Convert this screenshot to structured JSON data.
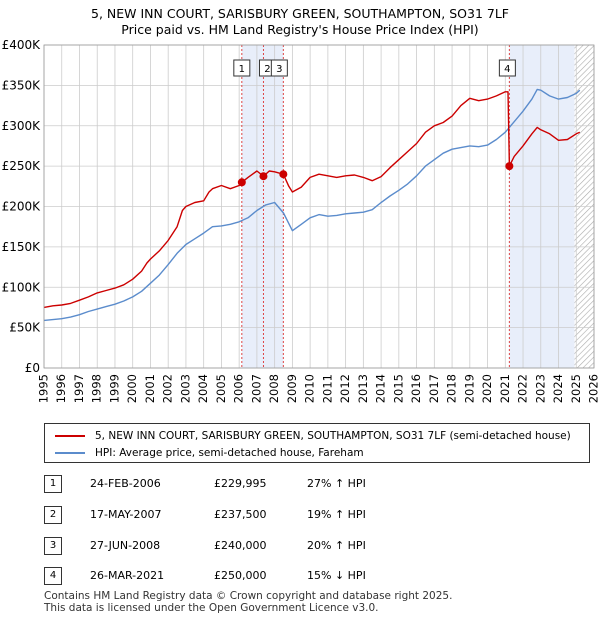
{
  "title_line1": "5, NEW INN COURT, SARISBURY GREEN, SOUTHAMPTON, SO31 7LF",
  "title_line2": "Price paid vs. HM Land Registry's House Price Index (HPI)",
  "legend": {
    "property": "5, NEW INN COURT, SARISBURY GREEN, SOUTHAMPTON, SO31 7LF (semi-detached house)",
    "hpi": "HPI: Average price, semi-detached house, Fareham"
  },
  "transactions": [
    {
      "num": "1",
      "date": "24-FEB-2006",
      "price": "£229,995",
      "hpi": "27% ↑ HPI"
    },
    {
      "num": "2",
      "date": "17-MAY-2007",
      "price": "£237,500",
      "hpi": "19% ↑ HPI"
    },
    {
      "num": "3",
      "date": "27-JUN-2008",
      "price": "£240,000",
      "hpi": "20% ↑ HPI"
    },
    {
      "num": "4",
      "date": "26-MAR-2021",
      "price": "£250,000",
      "hpi": "15% ↓ HPI"
    }
  ],
  "footer_line1": "Contains HM Land Registry data © Crown copyright and database right 2025.",
  "footer_line2": "This data is licensed under the Open Government Licence v3.0.",
  "colors": {
    "property": "#cc0000",
    "hpi": "#5b8ccc",
    "shade": "#e8eefa",
    "grid": "#cccccc"
  },
  "chart_data": {
    "type": "line",
    "xlim": [
      1995,
      2026
    ],
    "ylim": [
      0,
      400000
    ],
    "xticks": [
      1995,
      1996,
      1997,
      1998,
      1999,
      2000,
      2001,
      2002,
      2003,
      2004,
      2005,
      2006,
      2007,
      2008,
      2009,
      2010,
      2011,
      2012,
      2013,
      2014,
      2015,
      2016,
      2017,
      2018,
      2019,
      2020,
      2021,
      2022,
      2023,
      2024,
      2025,
      2026
    ],
    "yticks": [
      {
        "value": 0,
        "label": "£0"
      },
      {
        "value": 50000,
        "label": "£50K"
      },
      {
        "value": 100000,
        "label": "£100K"
      },
      {
        "value": 150000,
        "label": "£150K"
      },
      {
        "value": 200000,
        "label": "£200K"
      },
      {
        "value": 250000,
        "label": "£250K"
      },
      {
        "value": 300000,
        "label": "£300K"
      },
      {
        "value": 350000,
        "label": "£350K"
      },
      {
        "value": 400000,
        "label": "£400K"
      }
    ],
    "shaded_ranges": [
      [
        2006.15,
        2008.49
      ],
      [
        2021.23,
        2024.9
      ]
    ],
    "hatched_range": [
      2024.9,
      2026
    ],
    "series": [
      {
        "name": "5, NEW INN COURT, SARISBURY GREEN, SOUTHAMPTON, SO31 7LF (semi-detached house)",
        "points": [
          [
            1995,
            75000
          ],
          [
            1995.5,
            77000
          ],
          [
            1996,
            78000
          ],
          [
            1996.5,
            80000
          ],
          [
            1997,
            84000
          ],
          [
            1997.5,
            88000
          ],
          [
            1998,
            93000
          ],
          [
            1998.5,
            96000
          ],
          [
            1999,
            99000
          ],
          [
            1999.5,
            103000
          ],
          [
            2000,
            110000
          ],
          [
            2000.5,
            120000
          ],
          [
            2000.8,
            130000
          ],
          [
            2001,
            135000
          ],
          [
            2001.5,
            145000
          ],
          [
            2002,
            158000
          ],
          [
            2002.5,
            175000
          ],
          [
            2002.8,
            195000
          ],
          [
            2003,
            200000
          ],
          [
            2003.5,
            205000
          ],
          [
            2004,
            207000
          ],
          [
            2004.3,
            218000
          ],
          [
            2004.5,
            222000
          ],
          [
            2005,
            226000
          ],
          [
            2005.5,
            222000
          ],
          [
            2006,
            226000
          ],
          [
            2006.15,
            229995
          ],
          [
            2006.5,
            236000
          ],
          [
            2007,
            244000
          ],
          [
            2007.37,
            237500
          ],
          [
            2007.7,
            244000
          ],
          [
            2008,
            243000
          ],
          [
            2008.49,
            240000
          ],
          [
            2008.8,
            225000
          ],
          [
            2009,
            218000
          ],
          [
            2009.5,
            224000
          ],
          [
            2010,
            236000
          ],
          [
            2010.5,
            240000
          ],
          [
            2011,
            238000
          ],
          [
            2011.5,
            236000
          ],
          [
            2012,
            238000
          ],
          [
            2012.5,
            239000
          ],
          [
            2013,
            236000
          ],
          [
            2013.5,
            232000
          ],
          [
            2014,
            237000
          ],
          [
            2014.5,
            248000
          ],
          [
            2015,
            258000
          ],
          [
            2015.5,
            268000
          ],
          [
            2016,
            278000
          ],
          [
            2016.5,
            292000
          ],
          [
            2017,
            300000
          ],
          [
            2017.5,
            304000
          ],
          [
            2018,
            312000
          ],
          [
            2018.5,
            325000
          ],
          [
            2019,
            334000
          ],
          [
            2019.5,
            331000
          ],
          [
            2020,
            333000
          ],
          [
            2020.5,
            337000
          ],
          [
            2021,
            342000
          ],
          [
            2021.15,
            342000
          ],
          [
            2021.23,
            250000
          ],
          [
            2021.5,
            262000
          ],
          [
            2022,
            275000
          ],
          [
            2022.5,
            290000
          ],
          [
            2022.8,
            298000
          ],
          [
            2023,
            295000
          ],
          [
            2023.5,
            290000
          ],
          [
            2024,
            282000
          ],
          [
            2024.5,
            283000
          ],
          [
            2025,
            290000
          ],
          [
            2025.2,
            292000
          ]
        ]
      },
      {
        "name": "HPI: Average price, semi-detached house, Fareham",
        "points": [
          [
            1995,
            59000
          ],
          [
            1995.5,
            60000
          ],
          [
            1996,
            61000
          ],
          [
            1996.5,
            63000
          ],
          [
            1997,
            66000
          ],
          [
            1997.5,
            70000
          ],
          [
            1998,
            73000
          ],
          [
            1998.5,
            76000
          ],
          [
            1999,
            79000
          ],
          [
            1999.5,
            83000
          ],
          [
            2000,
            88000
          ],
          [
            2000.5,
            95000
          ],
          [
            2001,
            105000
          ],
          [
            2001.5,
            115000
          ],
          [
            2002,
            128000
          ],
          [
            2002.5,
            142000
          ],
          [
            2003,
            153000
          ],
          [
            2003.5,
            160000
          ],
          [
            2004,
            167000
          ],
          [
            2004.5,
            175000
          ],
          [
            2005,
            176000
          ],
          [
            2005.5,
            178000
          ],
          [
            2006,
            181000
          ],
          [
            2006.5,
            186000
          ],
          [
            2007,
            195000
          ],
          [
            2007.5,
            202000
          ],
          [
            2008,
            205000
          ],
          [
            2008.5,
            192000
          ],
          [
            2009,
            170000
          ],
          [
            2009.5,
            178000
          ],
          [
            2010,
            186000
          ],
          [
            2010.5,
            190000
          ],
          [
            2011,
            188000
          ],
          [
            2011.5,
            189000
          ],
          [
            2012,
            191000
          ],
          [
            2012.5,
            192000
          ],
          [
            2013,
            193000
          ],
          [
            2013.5,
            196000
          ],
          [
            2014,
            205000
          ],
          [
            2014.5,
            213000
          ],
          [
            2015,
            220000
          ],
          [
            2015.5,
            228000
          ],
          [
            2016,
            238000
          ],
          [
            2016.5,
            250000
          ],
          [
            2017,
            258000
          ],
          [
            2017.5,
            266000
          ],
          [
            2018,
            271000
          ],
          [
            2018.5,
            273000
          ],
          [
            2019,
            275000
          ],
          [
            2019.5,
            274000
          ],
          [
            2020,
            276000
          ],
          [
            2020.5,
            283000
          ],
          [
            2021,
            292000
          ],
          [
            2021.5,
            305000
          ],
          [
            2022,
            318000
          ],
          [
            2022.5,
            333000
          ],
          [
            2022.8,
            345000
          ],
          [
            2023,
            344000
          ],
          [
            2023.5,
            337000
          ],
          [
            2024,
            333000
          ],
          [
            2024.5,
            335000
          ],
          [
            2025,
            340000
          ],
          [
            2025.2,
            344000
          ]
        ]
      }
    ],
    "sales": [
      {
        "num": "1",
        "x": 2006.15,
        "y": 229995
      },
      {
        "num": "2",
        "x": 2007.37,
        "y": 237500
      },
      {
        "num": "3",
        "x": 2008.49,
        "y": 240000
      },
      {
        "num": "4",
        "x": 2021.23,
        "y": 250000
      }
    ]
  }
}
